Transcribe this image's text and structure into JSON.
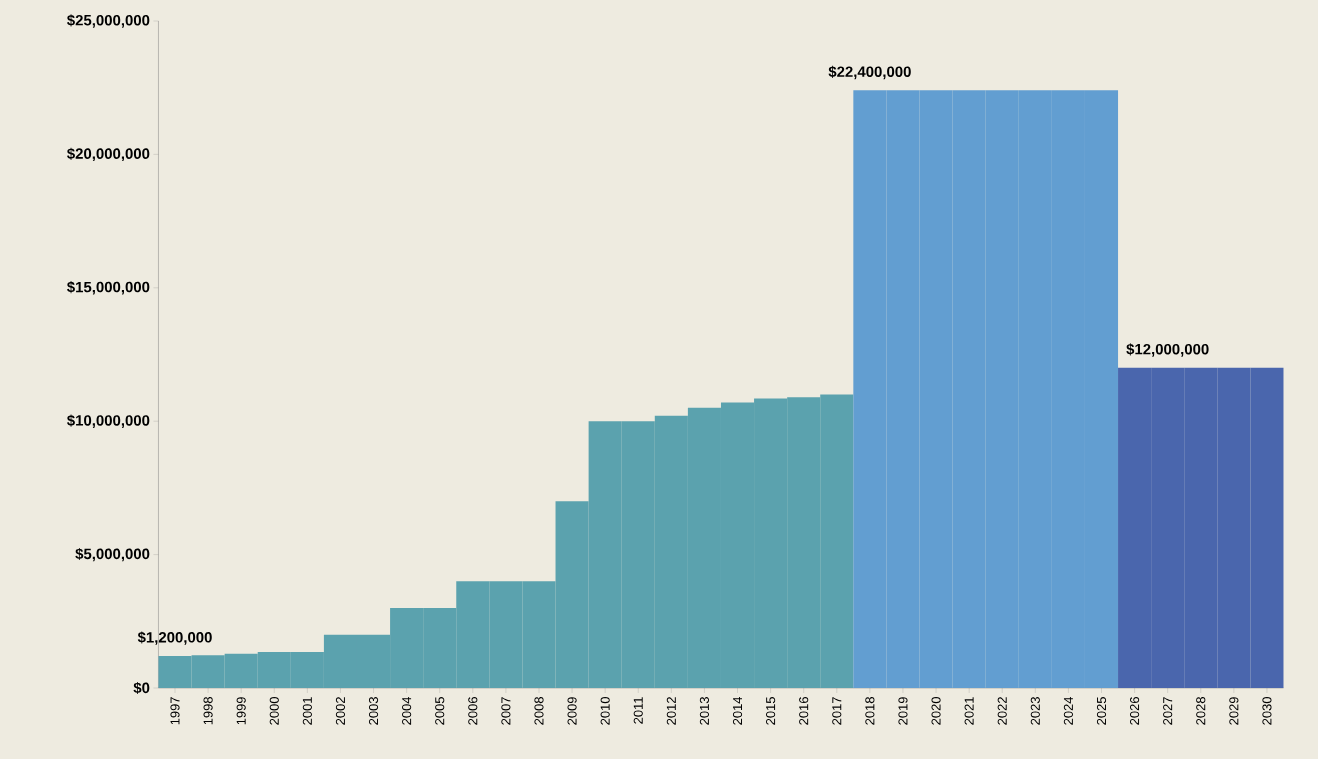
{
  "chart_data": {
    "type": "bar",
    "categories": [
      "1997",
      "1998",
      "1999",
      "2000",
      "2001",
      "2002",
      "2003",
      "2004",
      "2005",
      "2006",
      "2007",
      "2008",
      "2009",
      "2010",
      "2011",
      "2012",
      "2013",
      "2014",
      "2015",
      "2016",
      "2017",
      "2018",
      "2019",
      "2020",
      "2021",
      "2022",
      "2023",
      "2024",
      "2025",
      "2026",
      "2027",
      "2028",
      "2029",
      "2030"
    ],
    "values": [
      1200000,
      1230000,
      1280000,
      1350000,
      1350000,
      2000000,
      2000000,
      3000000,
      3000000,
      4000000,
      4000000,
      4000000,
      7000000,
      10000000,
      10000000,
      10200000,
      10500000,
      10700000,
      10850000,
      10900000,
      11000000,
      22400000,
      22400000,
      22400000,
      22400000,
      22400000,
      22400000,
      22400000,
      22400000,
      12000000,
      12000000,
      12000000,
      12000000,
      12000000
    ],
    "colors": [
      "#5ba2ae",
      "#5ba2ae",
      "#5ba2ae",
      "#5ba2ae",
      "#5ba2ae",
      "#5ba2ae",
      "#5ba2ae",
      "#5ba2ae",
      "#5ba2ae",
      "#5ba2ae",
      "#5ba2ae",
      "#5ba2ae",
      "#5ba2ae",
      "#5ba2ae",
      "#5ba2ae",
      "#5ba2ae",
      "#5ba2ae",
      "#5ba2ae",
      "#5ba2ae",
      "#5ba2ae",
      "#5ba2ae",
      "#629ed1",
      "#629ed1",
      "#629ed1",
      "#629ed1",
      "#629ed1",
      "#629ed1",
      "#629ed1",
      "#629ed1",
      "#4a66ad",
      "#4a66ad",
      "#4a66ad",
      "#4a66ad",
      "#4a66ad"
    ],
    "value_labels": [
      "$1,200,000",
      null,
      null,
      null,
      null,
      null,
      null,
      null,
      null,
      null,
      null,
      null,
      null,
      null,
      null,
      null,
      null,
      null,
      null,
      null,
      null,
      "$22,400,000",
      null,
      null,
      null,
      null,
      null,
      null,
      null,
      null,
      "$12,000,000",
      null,
      null,
      null
    ],
    "ylim": [
      0,
      25000000
    ],
    "yticks": [
      {
        "value": 0,
        "label": "$0"
      },
      {
        "value": 5000000,
        "label": "$5,000,000"
      },
      {
        "value": 10000000,
        "label": "$10,000,000"
      },
      {
        "value": 15000000,
        "label": "$15,000,000"
      },
      {
        "value": 20000000,
        "label": "$20,000,000"
      },
      {
        "value": 25000000,
        "label": "$25,000,000"
      }
    ],
    "grid": false
  }
}
